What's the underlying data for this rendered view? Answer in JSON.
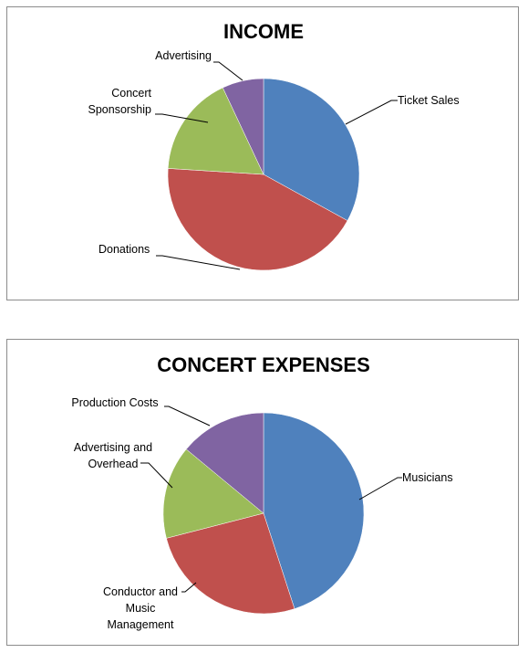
{
  "chart_data": [
    {
      "type": "pie",
      "title": "INCOME",
      "categories": [
        "Ticket Sales",
        "Donations",
        "Concert Sponsorship",
        "Advertising"
      ],
      "values": [
        33,
        43,
        17,
        7
      ],
      "colors": [
        "#4f81bd",
        "#c0504d",
        "#9bbb59",
        "#8064a2"
      ]
    },
    {
      "type": "pie",
      "title": "CONCERT EXPENSES",
      "categories": [
        "Musicians",
        "Conductor and Music Management",
        "Advertising and Overhead",
        "Production Costs"
      ],
      "values": [
        45,
        26,
        15,
        14
      ],
      "colors": [
        "#4f81bd",
        "#c0504d",
        "#9bbb59",
        "#8064a2"
      ]
    }
  ],
  "labels": {
    "income": [
      [
        "Ticket Sales"
      ],
      [
        "Donations"
      ],
      [
        "Concert",
        "Sponsorship"
      ],
      [
        "Advertising"
      ]
    ],
    "expenses": [
      [
        "Musicians"
      ],
      [
        "Conductor and",
        "Music",
        "Management"
      ],
      [
        "Advertising and",
        "Overhead"
      ],
      [
        "Production Costs"
      ]
    ]
  }
}
